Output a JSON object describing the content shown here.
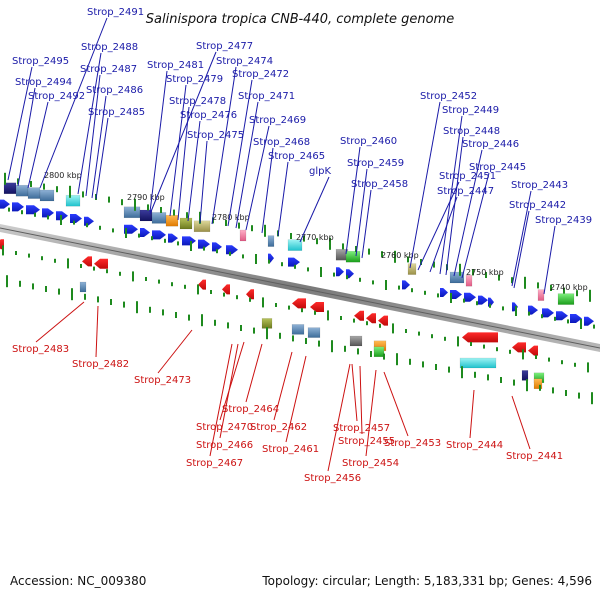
{
  "title": "Salinispora tropica CNB-440, complete genome",
  "footer": {
    "accession": "Accession: NC_009380",
    "summary": "Topology: circular; Length: 5,183,331 bp; Genes: 4,596"
  },
  "colors": {
    "forward_gene": "#1c2fe0",
    "reverse_gene": "#e01515",
    "label_forward": "#1a1aa8",
    "label_reverse": "#cc1111",
    "tick": "#1e8a1e",
    "backbone": "#8a8a8a"
  },
  "ruler_ticks": [
    "2800 kbp",
    "2790 kbp",
    "2780 kbp",
    "2770 kbp",
    "2760 kbp",
    "2750 kbp",
    "2740 kbp"
  ],
  "forward_labels": [
    "Strop_2491",
    "Strop_2495",
    "Strop_2488",
    "Strop_2494",
    "Strop_2487",
    "Strop_2492",
    "Strop_2486",
    "Strop_2485",
    "Strop_2477",
    "Strop_2481",
    "Strop_2474",
    "Strop_2479",
    "Strop_2472",
    "Strop_2478",
    "Strop_2471",
    "Strop_2476",
    "Strop_2469",
    "Strop_2475",
    "Strop_2468",
    "Strop_2465",
    "glpK",
    "Strop_2460",
    "Strop_2459",
    "Strop_2458",
    "Strop_2452",
    "Strop_2449",
    "Strop_2448",
    "Strop_2446",
    "Strop_2451",
    "Strop_2445",
    "Strop_2447",
    "Strop_2443",
    "Strop_2442",
    "Strop_2439"
  ],
  "reverse_labels": [
    "Strop_2483",
    "Strop_2482",
    "Strop_2473",
    "Strop_2464",
    "Strop_2470",
    "Strop_2462",
    "Strop_2466",
    "Strop_2461",
    "Strop_2467",
    "Strop_2457",
    "Strop_2455",
    "Strop_2454",
    "Strop_2456",
    "Strop_2453",
    "Strop_2444",
    "Strop_2441"
  ]
}
